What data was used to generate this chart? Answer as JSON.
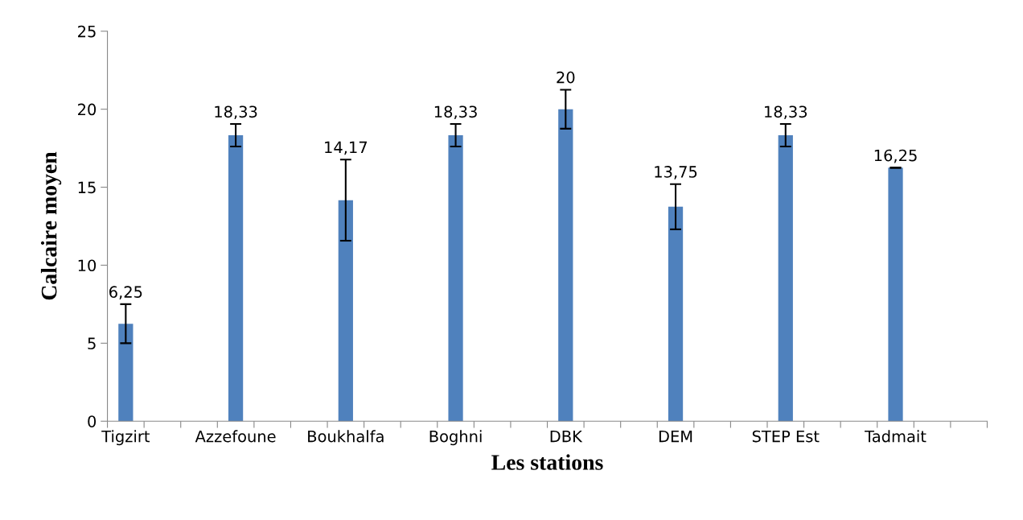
{
  "chart_data": {
    "type": "bar",
    "xlabel": "Les stations",
    "ylabel": "Calcaire moyen",
    "categories": [
      "Tigzirt",
      null,
      null,
      "Azzefoune",
      null,
      null,
      "Boukhalfa",
      null,
      null,
      "Boghni",
      null,
      null,
      "DBK",
      null,
      null,
      "DEM",
      null,
      null,
      "STEP Est",
      null,
      null,
      "Tadmait",
      null,
      null
    ],
    "values": [
      6.25,
      null,
      null,
      18.33,
      null,
      null,
      14.17,
      null,
      null,
      18.33,
      null,
      null,
      20,
      null,
      null,
      13.75,
      null,
      null,
      18.33,
      null,
      null,
      16.25,
      null,
      null
    ],
    "errors": [
      1.25,
      null,
      null,
      0.72,
      null,
      null,
      2.6,
      null,
      null,
      0.72,
      null,
      null,
      1.25,
      null,
      null,
      1.45,
      null,
      null,
      0.72,
      null,
      null,
      0,
      null,
      null
    ],
    "value_labels": [
      "6,25",
      null,
      null,
      "18,33",
      null,
      null,
      "14,17",
      null,
      null,
      "18,33",
      null,
      null,
      "20",
      null,
      null,
      "13,75",
      null,
      null,
      "18,33",
      null,
      null,
      "16,25",
      null,
      null
    ],
    "color": "#4f81bd",
    "ylim": [
      0,
      25
    ],
    "yticks": [
      0,
      5,
      10,
      15,
      20,
      25
    ],
    "grid": false,
    "legend": false
  }
}
